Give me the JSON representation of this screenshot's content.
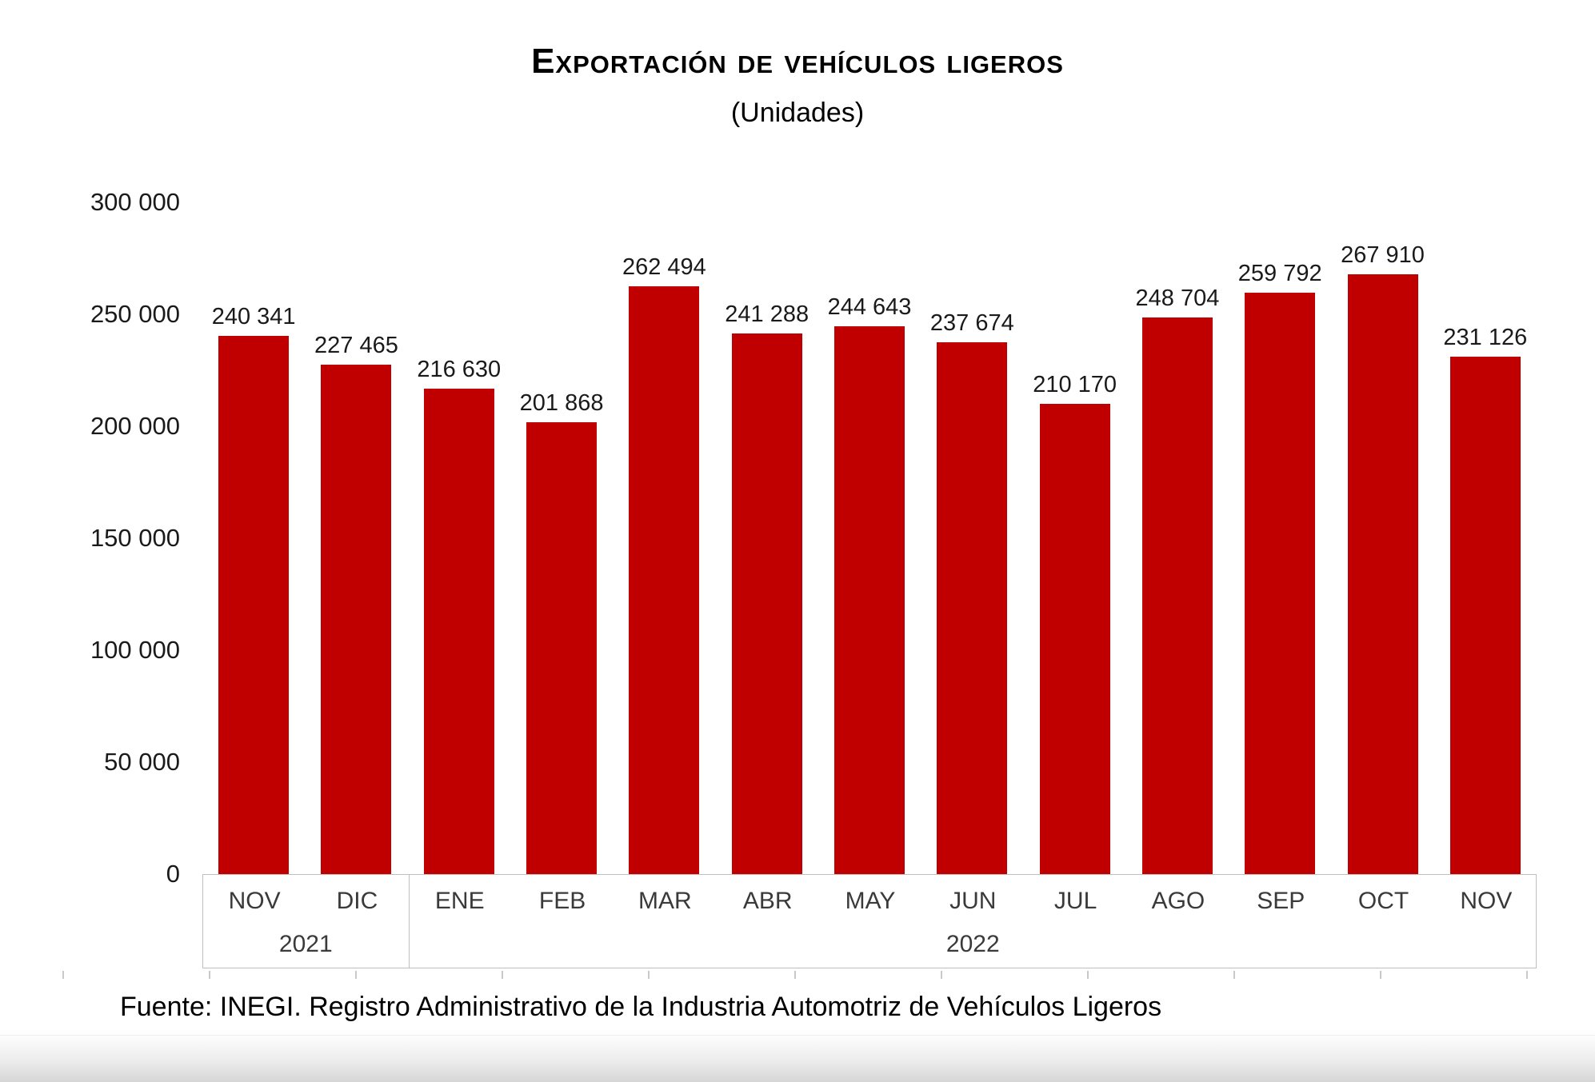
{
  "title": "Exportación de vehículos ligeros",
  "subtitle": "(Unidades)",
  "source": "Fuente: INEGI. Registro Administrativo de la Industria Automotriz de Vehículos Ligeros",
  "colors": {
    "bar": "#c00000",
    "axis_border": "#bfbfbf",
    "text": "#1a1a1a",
    "tick": "#c9c9c9"
  },
  "chart_data": {
    "type": "bar",
    "title": "Exportación de vehículos ligeros",
    "subtitle": "(Unidades)",
    "categories": [
      "NOV",
      "DIC",
      "ENE",
      "FEB",
      "MAR",
      "ABR",
      "MAY",
      "JUN",
      "JUL",
      "AGO",
      "SEP",
      "OCT",
      "NOV"
    ],
    "year_groups": [
      {
        "label": "2021",
        "start_slot": 0,
        "slot_count": 2
      },
      {
        "label": "2022",
        "start_slot": 2,
        "slot_count": 11
      }
    ],
    "values": [
      240341,
      227465,
      216630,
      201868,
      262494,
      241288,
      244643,
      237674,
      210170,
      248704,
      259792,
      267910,
      231126
    ],
    "value_labels": [
      "240 341",
      "227 465",
      "216 630",
      "201 868",
      "262 494",
      "241 288",
      "244 643",
      "237 674",
      "210 170",
      "248 704",
      "259 792",
      "267 910",
      "231 126"
    ],
    "ylim": [
      0,
      300000
    ],
    "ytick_step": 50000,
    "ytick_values": [
      0,
      50000,
      100000,
      150000,
      200000,
      250000,
      300000
    ],
    "ytick_labels": [
      "0",
      "50 000",
      "100 000",
      "150 000",
      "200 000",
      "250 000",
      "300 000"
    ],
    "grid": false,
    "legend": "none",
    "bar_color": "#c00000"
  }
}
